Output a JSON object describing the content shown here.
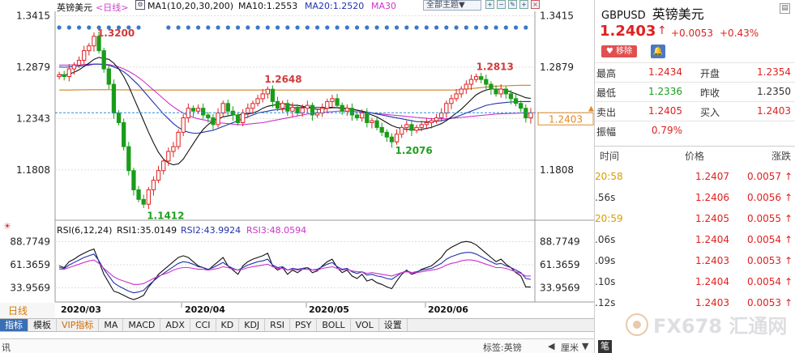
{
  "header": {
    "symbol_name": "英镑美元",
    "period_label": "<日线>",
    "ma_legend": "MA1(10,20,30,200)",
    "ma10": "MA10:1.2553",
    "ma20": "MA20:1.2520",
    "ma30": "MA30",
    "theme_select": "全部主题▼"
  },
  "price_axis": {
    "labels": [
      "1.3415",
      "1.2879",
      "1.2343",
      "1.1808"
    ],
    "current_price_box": "1.2403"
  },
  "annotations": {
    "high1": "1.3200",
    "low1": "1.1412",
    "mid_high": "1.2648",
    "mid_low": "1.2076",
    "recent_high": "1.2813"
  },
  "rsi": {
    "legend": "RSI(6,12,24)",
    "rsi1": "RSI1:35.0149",
    "rsi2": "RSI2:43.9924",
    "rsi3": "RSI3:48.0594",
    "axis": [
      "88.7749",
      "61.3659",
      "33.9569"
    ]
  },
  "x_axis": {
    "period_tag": "日线",
    "months": [
      "2020/03",
      "2020/04",
      "2020/05",
      "2020/06"
    ]
  },
  "tabs": [
    "指标",
    "模板",
    "VIP指标",
    "MA",
    "MACD",
    "ADX",
    "CCI",
    "KD",
    "KDJ",
    "RSI",
    "PSY",
    "BOLL",
    "VOL",
    "设置"
  ],
  "status": {
    "left": "讯",
    "search_label": "标签:英镑",
    "nav": "厘米",
    "corner": "笔"
  },
  "quote": {
    "symbol": "GBPUSD",
    "name": "英镑美元",
    "price": "1.2403",
    "change": "+0.0053",
    "change_pct": "+0.43%",
    "remove_button": "移除",
    "rows": [
      {
        "l1": "最高",
        "v1": "1.2434",
        "c1": "#e02020",
        "l2": "开盘",
        "v2": "1.2354",
        "c2": "#e02020"
      },
      {
        "l1": "最低",
        "v1": "1.2336",
        "c1": "#1a9c1a",
        "l2": "昨收",
        "v2": "1.2350",
        "c2": "#333333"
      },
      {
        "l1": "卖出",
        "v1": "1.2405",
        "c1": "#e02020",
        "l2": "买入",
        "v2": "1.2403",
        "c2": "#e02020"
      },
      {
        "l1": "振幅",
        "v1": "0.79%",
        "c1": "#e02020",
        "l2": "",
        "v2": "",
        "c2": "#333333"
      }
    ]
  },
  "ticks": {
    "headers": [
      "时间",
      "价格",
      "涨跌"
    ],
    "rows": [
      {
        "time": "20:58",
        "time_color": "#d4a000",
        "price": "1.2407",
        "change": "0.0057"
      },
      {
        "time": ".56s",
        "time_color": "#333333",
        "price": "1.2406",
        "change": "0.0056"
      },
      {
        "time": "20:59",
        "time_color": "#d4a000",
        "price": "1.2405",
        "change": "0.0055"
      },
      {
        "time": ".06s",
        "time_color": "#333333",
        "price": "1.2404",
        "change": "0.0054"
      },
      {
        "time": ".09s",
        "time_color": "#333333",
        "price": "1.2403",
        "change": "0.0053"
      },
      {
        "time": ".10s",
        "time_color": "#333333",
        "price": "1.2404",
        "change": "0.0054"
      },
      {
        "time": ".12s",
        "time_color": "#333333",
        "price": "1.2403",
        "change": "0.0053"
      }
    ]
  },
  "watermark": "FX678 汇通网",
  "colors": {
    "up": "#e02020",
    "down": "#1a9c1a",
    "ma10": "#111111",
    "ma20": "#2233aa",
    "ma30": "#cc33cc",
    "ma200": "#d08020",
    "accent": "#3a6fb5"
  },
  "chart_data": [
    {
      "type": "candlestick",
      "title": "英镑美元 <日线>",
      "y_axis_ticks": [
        1.3415,
        1.2879,
        1.2343,
        1.1808
      ],
      "ylim": [
        1.13,
        1.346
      ],
      "x_ticks": [
        "2020/03",
        "2020/04",
        "2020/05",
        "2020/06"
      ],
      "labeled_points": [
        {
          "label": "1.3200",
          "value": 1.32
        },
        {
          "label": "1.1412",
          "value": 1.1412
        },
        {
          "label": "1.2648",
          "value": 1.2648
        },
        {
          "label": "1.2076",
          "value": 1.2076
        },
        {
          "label": "1.2813",
          "value": 1.2813
        }
      ],
      "current_price": 1.2403,
      "closes": [
        1.28,
        1.278,
        1.286,
        1.29,
        1.295,
        1.305,
        1.31,
        1.32,
        1.305,
        1.286,
        1.27,
        1.24,
        1.23,
        1.205,
        1.18,
        1.16,
        1.15,
        1.145,
        1.16,
        1.17,
        1.18,
        1.19,
        1.2,
        1.205,
        1.22,
        1.235,
        1.245,
        1.242,
        1.245,
        1.238,
        1.235,
        1.228,
        1.24,
        1.25,
        1.242,
        1.238,
        1.23,
        1.24,
        1.245,
        1.25,
        1.255,
        1.26,
        1.2648,
        1.252,
        1.245,
        1.25,
        1.242,
        1.246,
        1.24,
        1.245,
        1.248,
        1.238,
        1.24,
        1.245,
        1.252,
        1.255,
        1.248,
        1.242,
        1.245,
        1.238,
        1.235,
        1.24,
        1.23,
        1.232,
        1.225,
        1.22,
        1.215,
        1.21,
        1.218,
        1.225,
        1.228,
        1.222,
        1.225,
        1.228,
        1.23,
        1.232,
        1.235,
        1.24,
        1.25,
        1.255,
        1.26,
        1.265,
        1.27,
        1.275,
        1.278,
        1.275,
        1.27,
        1.265,
        1.26,
        1.265,
        1.26,
        1.255,
        1.25,
        1.245,
        1.235,
        1.2403
      ],
      "ma10": [
        1.28,
        1.2795,
        1.2805,
        1.2825,
        1.285,
        1.2885,
        1.292,
        1.296,
        1.298,
        1.297,
        1.296,
        1.292,
        1.286,
        1.278,
        1.268,
        1.256,
        1.244,
        1.232,
        1.22,
        1.209,
        1.199,
        1.192,
        1.188,
        1.186,
        1.187,
        1.192,
        1.2,
        1.208,
        1.216,
        1.223,
        1.228,
        1.232,
        1.234,
        1.236,
        1.237,
        1.238,
        1.238,
        1.239,
        1.239,
        1.24,
        1.242,
        1.245,
        1.247,
        1.248,
        1.249,
        1.25,
        1.249,
        1.248,
        1.248,
        1.247,
        1.246,
        1.245,
        1.244,
        1.244,
        1.245,
        1.2455,
        1.2455,
        1.245,
        1.245,
        1.244,
        1.243,
        1.242,
        1.24,
        1.238,
        1.236,
        1.233,
        1.23,
        1.227,
        1.225,
        1.224,
        1.223,
        1.223,
        1.2225,
        1.223,
        1.224,
        1.225,
        1.227,
        1.229,
        1.232,
        1.236,
        1.24,
        1.244,
        1.249,
        1.254,
        1.259,
        1.262,
        1.264,
        1.265,
        1.265,
        1.265,
        1.264,
        1.262,
        1.26,
        1.258,
        1.256,
        1.2553
      ],
      "ma20": [
        1.288,
        1.2878,
        1.288,
        1.2885,
        1.289,
        1.2895,
        1.29,
        1.291,
        1.291,
        1.2905,
        1.29,
        1.288,
        1.286,
        1.283,
        1.279,
        1.274,
        1.269,
        1.263,
        1.257,
        1.251,
        1.245,
        1.239,
        1.234,
        1.229,
        1.225,
        1.222,
        1.22,
        1.219,
        1.219,
        1.22,
        1.221,
        1.222,
        1.224,
        1.226,
        1.228,
        1.23,
        1.232,
        1.234,
        1.236,
        1.238,
        1.24,
        1.241,
        1.242,
        1.243,
        1.2435,
        1.244,
        1.2445,
        1.245,
        1.2455,
        1.246,
        1.246,
        1.246,
        1.246,
        1.246,
        1.246,
        1.246,
        1.2455,
        1.245,
        1.2445,
        1.244,
        1.243,
        1.242,
        1.241,
        1.24,
        1.239,
        1.238,
        1.237,
        1.236,
        1.235,
        1.234,
        1.233,
        1.232,
        1.231,
        1.231,
        1.231,
        1.231,
        1.2315,
        1.232,
        1.233,
        1.2345,
        1.236,
        1.238,
        1.24,
        1.242,
        1.244,
        1.246,
        1.248,
        1.249,
        1.25,
        1.2505,
        1.251,
        1.2515,
        1.2518,
        1.252,
        1.252,
        1.252
      ],
      "ma30": [
        1.29,
        1.29,
        1.29,
        1.2902,
        1.2904,
        1.2906,
        1.2908,
        1.291,
        1.291,
        1.2908,
        1.2905,
        1.2895,
        1.288,
        1.286,
        1.2835,
        1.2805,
        1.277,
        1.273,
        1.2685,
        1.264,
        1.2595,
        1.255,
        1.2505,
        1.2465,
        1.243,
        1.24,
        1.2375,
        1.2355,
        1.234,
        1.233,
        1.232,
        1.231,
        1.23,
        1.2295,
        1.229,
        1.2285,
        1.228,
        1.228,
        1.2285,
        1.229,
        1.2295,
        1.23,
        1.231,
        1.232,
        1.233,
        1.234,
        1.235,
        1.236,
        1.237,
        1.238,
        1.239,
        1.2395,
        1.24,
        1.2405,
        1.241,
        1.2415,
        1.242,
        1.242,
        1.242,
        1.242,
        1.2415,
        1.241,
        1.2405,
        1.24,
        1.2395,
        1.239,
        1.2385,
        1.238,
        1.2375,
        1.237,
        1.2365,
        1.236,
        1.2355,
        1.235,
        1.2345,
        1.234,
        1.234,
        1.234,
        1.234,
        1.2345,
        1.235,
        1.2355,
        1.236,
        1.2365,
        1.237,
        1.2375,
        1.238,
        1.2385,
        1.239,
        1.2392,
        1.2394,
        1.2396,
        1.2398,
        1.24,
        1.24,
        1.24
      ],
      "ma200": [
        1.264,
        1.264,
        1.264,
        1.2641,
        1.2642,
        1.2642,
        1.2643,
        1.2643,
        1.2643,
        1.2643,
        1.2643,
        1.2643,
        1.2642,
        1.2642,
        1.2641,
        1.2641,
        1.264,
        1.264,
        1.264,
        1.264,
        1.264,
        1.264,
        1.264,
        1.264,
        1.264,
        1.264,
        1.264,
        1.264,
        1.264,
        1.264,
        1.264,
        1.264,
        1.264,
        1.264,
        1.264,
        1.264,
        1.264,
        1.264,
        1.264,
        1.264,
        1.264,
        1.264,
        1.264,
        1.264,
        1.264,
        1.264,
        1.264,
        1.264,
        1.264,
        1.264,
        1.264,
        1.264,
        1.264,
        1.264,
        1.264,
        1.264,
        1.264,
        1.264,
        1.264,
        1.264,
        1.264,
        1.264,
        1.264,
        1.264,
        1.264,
        1.264,
        1.264,
        1.264,
        1.264,
        1.264,
        1.264,
        1.264,
        1.264,
        1.264,
        1.264,
        1.264,
        1.264,
        1.264,
        1.264,
        1.264,
        1.264,
        1.2645,
        1.265,
        1.2655,
        1.266,
        1.2665,
        1.267,
        1.2675,
        1.268,
        1.2682,
        1.2684,
        1.2686,
        1.2688,
        1.269,
        1.269,
        1.269
      ]
    },
    {
      "type": "line",
      "title": "RSI(6,12,24)",
      "y_axis_ticks": [
        88.7749,
        61.3659,
        33.9569
      ],
      "ylim": [
        20,
        95
      ],
      "series": [
        {
          "name": "RSI1",
          "last": 35.0149,
          "values": [
            60,
            58,
            65,
            68,
            72,
            75,
            78,
            80,
            65,
            50,
            40,
            30,
            28,
            25,
            22,
            20,
            22,
            25,
            35,
            42,
            50,
            55,
            60,
            65,
            70,
            72,
            70,
            65,
            60,
            58,
            55,
            60,
            65,
            70,
            60,
            55,
            50,
            60,
            65,
            68,
            70,
            72,
            75,
            60,
            55,
            58,
            50,
            55,
            52,
            56,
            58,
            52,
            54,
            60,
            65,
            68,
            58,
            52,
            55,
            48,
            45,
            50,
            42,
            44,
            40,
            38,
            35,
            33,
            42,
            50,
            55,
            50,
            52,
            56,
            58,
            60,
            65,
            70,
            78,
            82,
            85,
            88,
            89,
            88,
            85,
            80,
            75,
            70,
            65,
            68,
            62,
            58,
            52,
            48,
            35,
            35
          ]
        },
        {
          "name": "RSI2",
          "last": 43.9924,
          "values": [
            58,
            57,
            61,
            64,
            67,
            70,
            72,
            74,
            66,
            56,
            48,
            40,
            36,
            33,
            30,
            28,
            29,
            31,
            37,
            42,
            47,
            51,
            55,
            59,
            63,
            65,
            64,
            62,
            59,
            58,
            56,
            58,
            61,
            64,
            60,
            57,
            55,
            58,
            61,
            63,
            65,
            66,
            68,
            61,
            58,
            59,
            55,
            57,
            56,
            57,
            58,
            55,
            56,
            59,
            62,
            64,
            59,
            56,
            57,
            53,
            51,
            53,
            49,
            50,
            48,
            47,
            45,
            44,
            48,
            52,
            54,
            52,
            53,
            55,
            56,
            57,
            60,
            63,
            68,
            71,
            73,
            75,
            76,
            76,
            74,
            71,
            68,
            65,
            62,
            63,
            60,
            58,
            55,
            52,
            45,
            44
          ]
        },
        {
          "name": "RSI3",
          "last": 48.0594,
          "values": [
            56,
            56,
            58,
            60,
            62,
            64,
            66,
            67,
            63,
            57,
            52,
            47,
            44,
            42,
            40,
            38,
            38,
            39,
            42,
            45,
            48,
            50,
            52,
            55,
            57,
            58,
            58,
            57,
            56,
            56,
            55,
            56,
            57,
            59,
            58,
            56,
            55,
            56,
            58,
            59,
            60,
            61,
            62,
            59,
            57,
            57,
            55,
            56,
            55,
            56,
            56,
            55,
            55,
            57,
            58,
            59,
            57,
            55,
            56,
            54,
            53,
            53,
            51,
            52,
            51,
            50,
            49,
            48,
            50,
            52,
            53,
            52,
            52,
            53,
            54,
            55,
            56,
            58,
            61,
            63,
            64,
            66,
            67,
            67,
            66,
            64,
            62,
            60,
            58,
            58,
            57,
            55,
            53,
            51,
            48,
            48
          ]
        }
      ]
    }
  ]
}
